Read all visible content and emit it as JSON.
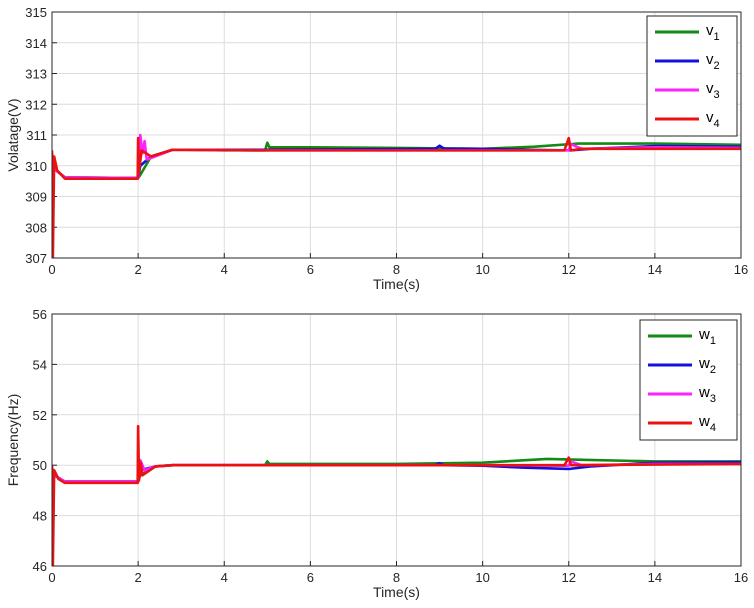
{
  "chart_data": [
    {
      "type": "line",
      "xlabel": "Time(s)",
      "ylabel": "Volatage(V)",
      "xlim": [
        0,
        16
      ],
      "ylim": [
        307,
        315
      ],
      "xticks": [
        "0",
        "2",
        "4",
        "6",
        "8",
        "10",
        "12",
        "14",
        "16"
      ],
      "yticks": [
        "307",
        "308",
        "309",
        "310",
        "311",
        "312",
        "313",
        "314",
        "315"
      ],
      "grid": true,
      "legend": "top-right",
      "series": [
        {
          "name": "v",
          "sub": "1",
          "color": "#138a13",
          "points": [
            [
              0,
              310.4
            ],
            [
              0.05,
              309.9
            ],
            [
              0.3,
              309.62
            ],
            [
              2.0,
              309.6
            ],
            [
              2.05,
              309.7
            ],
            [
              2.3,
              310.3
            ],
            [
              2.8,
              310.52
            ],
            [
              4.0,
              310.5
            ],
            [
              4.95,
              310.5
            ],
            [
              5.0,
              310.75
            ],
            [
              5.05,
              310.6
            ],
            [
              6,
              310.6
            ],
            [
              8,
              310.58
            ],
            [
              10,
              310.55
            ],
            [
              11.2,
              310.62
            ],
            [
              12.2,
              310.72
            ],
            [
              14,
              310.72
            ],
            [
              16,
              310.68
            ]
          ]
        },
        {
          "name": "v",
          "sub": "2",
          "color": "#1010e0",
          "points": [
            [
              0,
              310.4
            ],
            [
              0.05,
              309.9
            ],
            [
              0.3,
              309.62
            ],
            [
              2.0,
              309.6
            ],
            [
              2.05,
              310.0
            ],
            [
              2.3,
              310.3
            ],
            [
              2.8,
              310.52
            ],
            [
              5,
              310.52
            ],
            [
              8.9,
              310.55
            ],
            [
              9.0,
              310.65
            ],
            [
              9.1,
              310.56
            ],
            [
              10,
              310.55
            ],
            [
              11,
              310.52
            ],
            [
              12.05,
              310.5
            ],
            [
              12.5,
              310.55
            ],
            [
              14,
              310.64
            ],
            [
              16,
              310.62
            ]
          ]
        },
        {
          "name": "v",
          "sub": "3",
          "color": "#ff22ff",
          "points": [
            [
              0,
              310.4
            ],
            [
              0.05,
              309.9
            ],
            [
              0.3,
              309.62
            ],
            [
              2.0,
              309.6
            ],
            [
              2.05,
              311.0
            ],
            [
              2.1,
              310.4
            ],
            [
              2.15,
              310.8
            ],
            [
              2.2,
              310.2
            ],
            [
              2.8,
              310.52
            ],
            [
              5,
              310.5
            ],
            [
              10,
              310.5
            ],
            [
              12.0,
              310.5
            ],
            [
              12.05,
              310.7
            ],
            [
              12.3,
              310.55
            ],
            [
              14,
              310.6
            ],
            [
              16,
              310.58
            ]
          ]
        },
        {
          "name": "v",
          "sub": "4",
          "color": "#ee1111",
          "points": [
            [
              0,
              310.5
            ],
            [
              0.02,
              307.0
            ],
            [
              0.05,
              310.3
            ],
            [
              0.12,
              309.85
            ],
            [
              0.3,
              309.58
            ],
            [
              1.99,
              309.58
            ],
            [
              2.0,
              310.9
            ],
            [
              2.02,
              309.8
            ],
            [
              2.08,
              310.5
            ],
            [
              2.3,
              310.3
            ],
            [
              2.8,
              310.52
            ],
            [
              5,
              310.5
            ],
            [
              11.9,
              310.5
            ],
            [
              12.0,
              310.9
            ],
            [
              12.05,
              310.5
            ],
            [
              12.3,
              310.55
            ],
            [
              16,
              310.55
            ]
          ]
        }
      ]
    },
    {
      "type": "line",
      "xlabel": "Time(s)",
      "ylabel": "Frequency(Hz)",
      "xlim": [
        0,
        16
      ],
      "ylim": [
        46,
        56
      ],
      "xticks": [
        "0",
        "2",
        "4",
        "6",
        "8",
        "10",
        "12",
        "14",
        "16"
      ],
      "yticks": [
        "46",
        "48",
        "50",
        "52",
        "54",
        "56"
      ],
      "grid": true,
      "legend": "top-right",
      "series": [
        {
          "name": "w",
          "sub": "1",
          "color": "#138a13",
          "points": [
            [
              0,
              49.9
            ],
            [
              0.05,
              49.6
            ],
            [
              0.3,
              49.35
            ],
            [
              2.0,
              49.35
            ],
            [
              2.05,
              49.6
            ],
            [
              2.4,
              49.95
            ],
            [
              2.8,
              50.0
            ],
            [
              4.95,
              50.0
            ],
            [
              5.0,
              50.15
            ],
            [
              5.05,
              50.05
            ],
            [
              8,
              50.05
            ],
            [
              10,
              50.1
            ],
            [
              11.5,
              50.25
            ],
            [
              12.2,
              50.22
            ],
            [
              14,
              50.15
            ],
            [
              16,
              50.15
            ]
          ]
        },
        {
          "name": "w",
          "sub": "2",
          "color": "#1010e0",
          "points": [
            [
              0,
              49.9
            ],
            [
              0.05,
              49.6
            ],
            [
              0.3,
              49.35
            ],
            [
              2.0,
              49.35
            ],
            [
              2.05,
              49.8
            ],
            [
              2.4,
              49.95
            ],
            [
              2.8,
              50.0
            ],
            [
              8.9,
              50.0
            ],
            [
              9.0,
              50.08
            ],
            [
              9.1,
              50.0
            ],
            [
              10,
              49.98
            ],
            [
              11,
              49.9
            ],
            [
              12.0,
              49.85
            ],
            [
              12.5,
              49.95
            ],
            [
              14,
              50.1
            ],
            [
              16,
              50.12
            ]
          ]
        },
        {
          "name": "w",
          "sub": "3",
          "color": "#ff22ff",
          "points": [
            [
              0,
              49.9
            ],
            [
              0.05,
              49.6
            ],
            [
              0.3,
              49.35
            ],
            [
              2.0,
              49.35
            ],
            [
              2.05,
              50.2
            ],
            [
              2.15,
              49.8
            ],
            [
              2.4,
              49.95
            ],
            [
              2.8,
              50.0
            ],
            [
              10,
              50.0
            ],
            [
              12.0,
              49.98
            ],
            [
              12.05,
              50.15
            ],
            [
              12.3,
              50.0
            ],
            [
              14,
              50.05
            ],
            [
              16,
              50.05
            ]
          ]
        },
        {
          "name": "w",
          "sub": "4",
          "color": "#ee1111",
          "points": [
            [
              0,
              50.0
            ],
            [
              0.02,
              46.0
            ],
            [
              0.05,
              49.8
            ],
            [
              0.15,
              49.45
            ],
            [
              0.3,
              49.3
            ],
            [
              1.99,
              49.3
            ],
            [
              2.0,
              51.55
            ],
            [
              2.02,
              49.4
            ],
            [
              2.06,
              50.1
            ],
            [
              2.1,
              49.6
            ],
            [
              2.4,
              49.95
            ],
            [
              2.8,
              50.0
            ],
            [
              11.9,
              50.0
            ],
            [
              12.0,
              50.3
            ],
            [
              12.05,
              50.0
            ],
            [
              16,
              50.05
            ]
          ]
        }
      ]
    }
  ]
}
